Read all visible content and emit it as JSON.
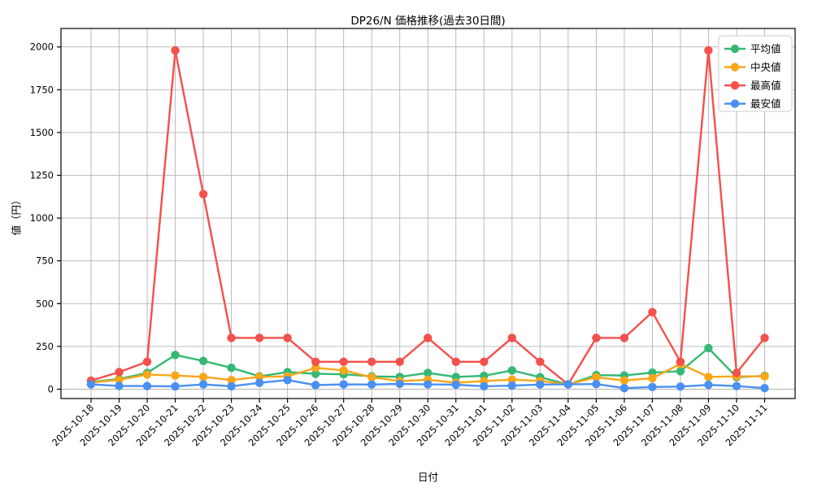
{
  "figure": {
    "title": "DP26/N 価格推移(過去30日間)",
    "xlabel": "日付",
    "ylabel": "値（円）"
  },
  "chart_data": {
    "type": "line",
    "title": "DP26/N 価格推移(過去30日間)",
    "xlabel": "日付",
    "ylabel": "値（円）",
    "grid": true,
    "legend_position": "upper right",
    "ylim": [
      0,
      2000
    ],
    "yticks": [
      0,
      250,
      500,
      750,
      1000,
      1250,
      1500,
      1750,
      2000
    ],
    "x": [
      "2025-10-18",
      "2025-10-19",
      "2025-10-20",
      "2025-10-21",
      "2025-10-22",
      "2025-10-23",
      "2025-10-24",
      "2025-10-25",
      "2025-10-26",
      "2025-10-27",
      "2025-10-28",
      "2025-10-29",
      "2025-10-30",
      "2025-10-31",
      "2025-11-01",
      "2025-11-02",
      "2025-11-03",
      "2025-11-04",
      "2025-11-05",
      "2025-11-06",
      "2025-11-07",
      "2025-11-08",
      "2025-11-09",
      "2025-11-10",
      "2025-11-11"
    ],
    "series": [
      {
        "name": "平均値",
        "color": "#35b873",
        "values": [
          42,
          60,
          95,
          200,
          165,
          125,
          75,
          100,
          90,
          87,
          75,
          72,
          95,
          72,
          78,
          110,
          70,
          28,
          82,
          80,
          97,
          105,
          240,
          70,
          78
        ]
      },
      {
        "name": "中央値",
        "color": "#f9a61a",
        "values": [
          38,
          55,
          85,
          80,
          72,
          53,
          72,
          75,
          125,
          110,
          70,
          47,
          55,
          38,
          47,
          56,
          48,
          28,
          70,
          51,
          64,
          148,
          72,
          75,
          75
        ]
      },
      {
        "name": "最高値",
        "color": "#f4504c",
        "values": [
          50,
          100,
          160,
          1980,
          1140,
          300,
          300,
          300,
          160,
          160,
          160,
          160,
          300,
          160,
          160,
          300,
          160,
          28,
          300,
          300,
          450,
          160,
          1980,
          95,
          300
        ]
      },
      {
        "name": "最安値",
        "color": "#4a90f2",
        "values": [
          28,
          19,
          18,
          16,
          28,
          17,
          37,
          53,
          24,
          28,
          27,
          31,
          28,
          26,
          17,
          21,
          27,
          28,
          30,
          6,
          13,
          15,
          25,
          18,
          6
        ]
      }
    ],
    "colors": {
      "grid": "#b3b3b3",
      "spine": "#000000",
      "tick_text": "#000000",
      "legend_border": "#cccccc",
      "legend_bg": "#ffffff"
    }
  }
}
